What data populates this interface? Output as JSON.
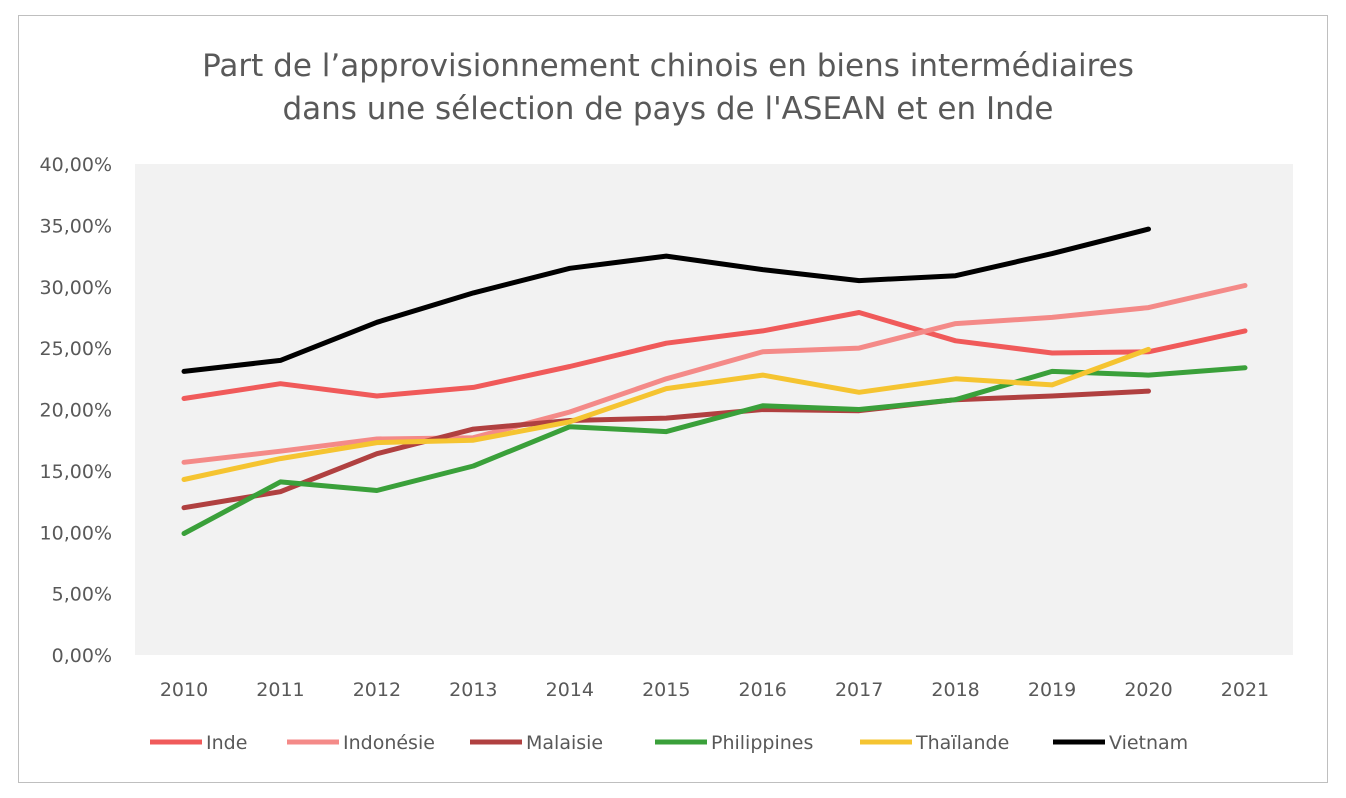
{
  "chart_data": {
    "type": "line",
    "title": [
      "Part de l’approvisionnement chinois en biens intermédiaires",
      "dans une sélection de pays de l'ASEAN et en Inde"
    ],
    "xlabel": "",
    "ylabel": "",
    "categories": [
      "2010",
      "2011",
      "2012",
      "2013",
      "2014",
      "2015",
      "2016",
      "2017",
      "2018",
      "2019",
      "2020",
      "2021"
    ],
    "ylim": [
      0,
      40
    ],
    "yticks": [
      "0,00%",
      "5,00%",
      "10,00%",
      "15,00%",
      "20,00%",
      "25,00%",
      "30,00%",
      "35,00%",
      "40,00%"
    ],
    "grid": false,
    "plot_background": "#f2f2f2",
    "legend_position": "bottom",
    "series": [
      {
        "name": "Inde",
        "color": "#f05a5a",
        "values": [
          20.9,
          22.1,
          21.1,
          21.8,
          23.5,
          25.4,
          26.4,
          27.9,
          25.6,
          24.6,
          24.7,
          26.4
        ]
      },
      {
        "name": "Indonésie",
        "color": "#f48a88",
        "values": [
          15.7,
          16.6,
          17.6,
          17.7,
          19.8,
          22.5,
          24.7,
          25.0,
          27.0,
          27.5,
          28.3,
          30.1
        ]
      },
      {
        "name": "Malaisie",
        "color": "#b04040",
        "values": [
          12.0,
          13.3,
          16.4,
          18.4,
          19.1,
          19.3,
          20.0,
          19.9,
          20.8,
          21.1,
          21.5,
          null
        ]
      },
      {
        "name": "Philippines",
        "color": "#3aa03a",
        "values": [
          9.9,
          14.1,
          13.4,
          15.4,
          18.6,
          18.2,
          20.3,
          20.0,
          20.8,
          23.1,
          22.8,
          23.4
        ]
      },
      {
        "name": "Thaïlande",
        "color": "#f5c431",
        "values": [
          14.3,
          16.0,
          17.3,
          17.5,
          19.0,
          21.7,
          22.8,
          21.4,
          22.5,
          22.0,
          24.9,
          null
        ]
      },
      {
        "name": "Vietnam",
        "color": "#000000",
        "values": [
          23.1,
          24.0,
          27.1,
          29.5,
          31.5,
          32.5,
          31.4,
          30.5,
          30.9,
          32.7,
          34.7,
          null
        ]
      }
    ]
  }
}
